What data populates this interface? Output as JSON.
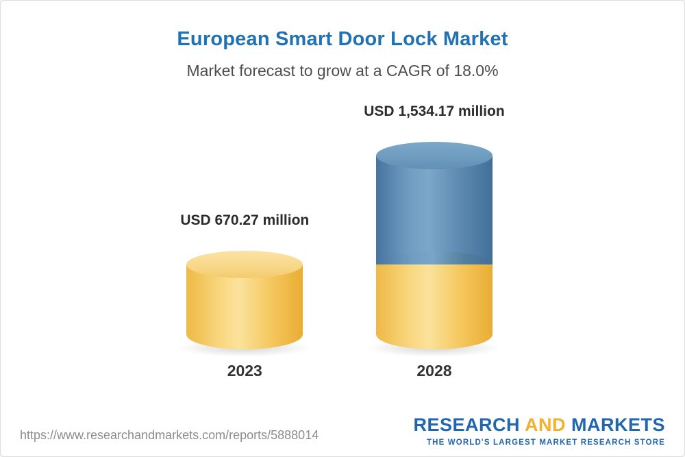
{
  "header": {
    "title": "European Smart Door Lock Market",
    "subtitle": "Market forecast to grow at a CAGR of 18.0%"
  },
  "chart_data": {
    "type": "bar",
    "bar_style": "3d-cylinder",
    "categories": [
      "2023",
      "2028"
    ],
    "values": [
      670.27,
      1534.17
    ],
    "value_labels": [
      "USD 670.27 million",
      "USD 1,534.17 million"
    ],
    "unit": "USD million",
    "title": "European Smart Door Lock Market",
    "subtitle": "Market forecast to grow at a CAGR of 18.0%",
    "cagr_percent": 18.0,
    "ylim": [
      0,
      1600
    ],
    "grid": "off",
    "legend": "none",
    "colors": {
      "base_segment": "#f5c85f",
      "growth_segment": "#5d8ab1",
      "title_text": "#2271b2"
    },
    "notes": "2028 cylinder is stacked: lower yellow segment equals the 2023 value, upper blue segment shows growth to the 2028 total."
  },
  "bars": [
    {
      "year": "2023",
      "value_label": "USD 670.27 million"
    },
    {
      "year": "2028",
      "value_label": "USD 1,534.17 million"
    }
  ],
  "footer": {
    "url": "https://www.researchandmarkets.com/reports/5888014",
    "logo": {
      "word1": "RESEARCH",
      "word2": "AND",
      "word3": "MARKETS",
      "tagline": "THE WORLD'S LARGEST MARKET RESEARCH STORE"
    }
  }
}
